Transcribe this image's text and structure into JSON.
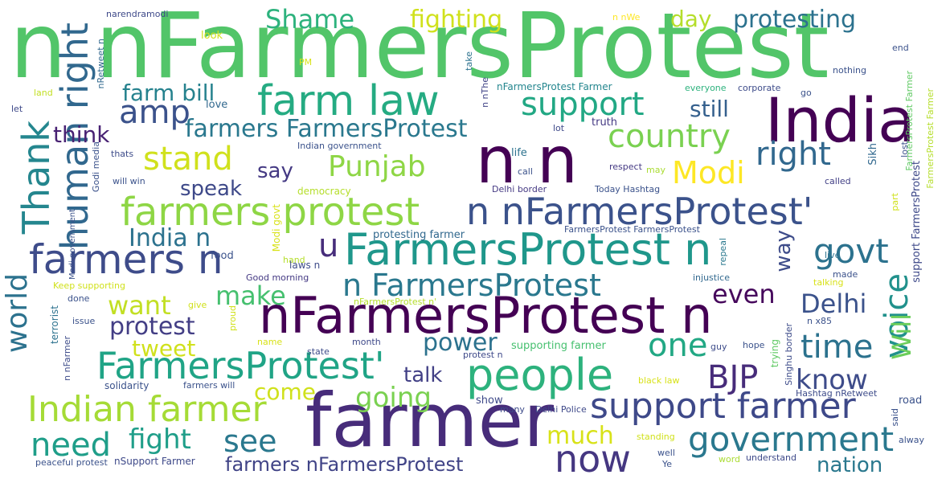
{
  "words": [
    {
      "text": "n nFarmersProtest",
      "color": "#52c569"
    },
    {
      "text": "India",
      "color": "#440154"
    },
    {
      "text": "farmer",
      "color": "#472c7a"
    },
    {
      "text": "n n",
      "color": "#440154"
    },
    {
      "text": "nFarmersProtest n",
      "color": "#440154"
    },
    {
      "text": "FarmersProtest n",
      "color": "#1f978b"
    },
    {
      "text": "farm law",
      "color": "#25ab82"
    },
    {
      "text": "farmers protest",
      "color": "#8ed645"
    },
    {
      "text": "n nFarmersProtest'",
      "color": "#3b528b"
    },
    {
      "text": "people",
      "color": "#2db27d"
    },
    {
      "text": "farmers n",
      "color": "#3e4c8a"
    },
    {
      "text": "human right",
      "color": "#31688e"
    },
    {
      "text": "Thank",
      "color": "#24868e"
    },
    {
      "text": "FarmersProtest'",
      "color": "#20a486"
    },
    {
      "text": "Indian farmer",
      "color": "#a5db36"
    },
    {
      "text": "support farmer",
      "color": "#3e4989"
    },
    {
      "text": "government",
      "color": "#2a788e"
    },
    {
      "text": "now",
      "color": "#453781"
    },
    {
      "text": "need",
      "color": "#1f9e89"
    },
    {
      "text": "country",
      "color": "#7ad151"
    },
    {
      "text": "support",
      "color": "#22a884"
    },
    {
      "text": "stand",
      "color": "#d0e11c"
    },
    {
      "text": "right",
      "color": "#31688e"
    },
    {
      "text": "Punjab",
      "color": "#8ed645"
    },
    {
      "text": "Modi",
      "color": "#fde725"
    },
    {
      "text": "amp",
      "color": "#3b528b"
    },
    {
      "text": "Shame",
      "color": "#2db27d"
    },
    {
      "text": "fighting",
      "color": "#d0e11c"
    },
    {
      "text": "protesting",
      "color": "#2c728e"
    },
    {
      "text": "day",
      "color": "#b5de2b"
    },
    {
      "text": "farm bill",
      "color": "#26828e"
    },
    {
      "text": "still",
      "color": "#35608d"
    },
    {
      "text": "farmers FarmersProtest",
      "color": "#2a788e"
    },
    {
      "text": "think",
      "color": "#482173"
    },
    {
      "text": "say",
      "color": "#443983"
    },
    {
      "text": "speak",
      "color": "#3e4989"
    },
    {
      "text": "India n",
      "color": "#2c728e"
    },
    {
      "text": "u",
      "color": "#472d7b"
    },
    {
      "text": "n FarmersProtest",
      "color": "#2a788e"
    },
    {
      "text": "govt",
      "color": "#2c728e"
    },
    {
      "text": "make",
      "color": "#46c06f"
    },
    {
      "text": "want",
      "color": "#c2df23"
    },
    {
      "text": "protest",
      "color": "#433e85"
    },
    {
      "text": "tweet",
      "color": "#d0e11c"
    },
    {
      "text": "power",
      "color": "#2c728e"
    },
    {
      "text": "one",
      "color": "#22a884"
    },
    {
      "text": "time",
      "color": "#2c728e"
    },
    {
      "text": "even",
      "color": "#46085c"
    },
    {
      "text": "Delhi",
      "color": "#3b528b"
    },
    {
      "text": "voice",
      "color": "#21918c"
    },
    {
      "text": "Will",
      "color": "#6ccd5a"
    },
    {
      "text": "BJP",
      "color": "#472c7a"
    },
    {
      "text": "know",
      "color": "#3e4c8a"
    },
    {
      "text": "going",
      "color": "#7ad151"
    },
    {
      "text": "talk",
      "color": "#424086"
    },
    {
      "text": "come",
      "color": "#d0e11c"
    },
    {
      "text": "world",
      "color": "#2c728e"
    },
    {
      "text": "fight",
      "color": "#1f9e89"
    },
    {
      "text": "see",
      "color": "#2a788e"
    },
    {
      "text": "much",
      "color": "#d8e219"
    },
    {
      "text": "farmers nFarmersProtest",
      "color": "#414487"
    },
    {
      "text": "nation",
      "color": "#2a788e"
    },
    {
      "text": "way",
      "color": "#3e4c8a"
    },
    {
      "text": "narendramodi",
      "color": "#3e4989"
    },
    {
      "text": "n nWe",
      "color": "#fde725"
    },
    {
      "text": "look",
      "color": "#d0e11c"
    },
    {
      "text": "PM",
      "color": "#d8e219"
    },
    {
      "text": "nRetweet n",
      "color": "#31688e"
    },
    {
      "text": "take",
      "color": "#2c728e"
    },
    {
      "text": "n nThe",
      "color": "#414487"
    },
    {
      "text": "nothing",
      "color": "#3b528b"
    },
    {
      "text": "end",
      "color": "#3b528b"
    },
    {
      "text": "FarmersProtest Farmer",
      "color": "#5ec962"
    },
    {
      "text": "land",
      "color": "#c2df23"
    },
    {
      "text": "let",
      "color": "#3e4989"
    },
    {
      "text": "love",
      "color": "#31688e"
    },
    {
      "text": "nFarmersProtest Farmer",
      "color": "#24868e"
    },
    {
      "text": "everyone",
      "color": "#2db27d"
    },
    {
      "text": "corporate",
      "color": "#3e4c8a"
    },
    {
      "text": "go",
      "color": "#3b528b"
    },
    {
      "text": "truth",
      "color": "#443983"
    },
    {
      "text": "lot",
      "color": "#3e4989"
    },
    {
      "text": "Indian government",
      "color": "#3b528b"
    },
    {
      "text": "life",
      "color": "#2c728e"
    },
    {
      "text": "thats",
      "color": "#3e4c8a"
    },
    {
      "text": "Godi media",
      "color": "#3b528b"
    },
    {
      "text": "call",
      "color": "#3b528b"
    },
    {
      "text": "respect",
      "color": "#443983"
    },
    {
      "text": "may",
      "color": "#aadc32"
    },
    {
      "text": "lost",
      "color": "#3b528b"
    },
    {
      "text": "Sikh",
      "color": "#31688e"
    },
    {
      "text": "FarmersProtest Farmer",
      "color": "#b5de2b"
    },
    {
      "text": "support FarmersProtest",
      "color": "#3e4989"
    },
    {
      "text": "will win",
      "color": "#3b528b"
    },
    {
      "text": "democracy",
      "color": "#b5de2b"
    },
    {
      "text": "Delhi border",
      "color": "#443983"
    },
    {
      "text": "Today Hashtag",
      "color": "#3b528b"
    },
    {
      "text": "called",
      "color": "#424086"
    },
    {
      "text": "part",
      "color": "#d0e11c"
    },
    {
      "text": "Modi government",
      "color": "#3b528b"
    },
    {
      "text": "hand",
      "color": "#b5de2b"
    },
    {
      "text": "Modi govt",
      "color": "#d8e219"
    },
    {
      "text": "FarmersProtest FarmersProtest",
      "color": "#3b528b"
    },
    {
      "text": "protesting farmer",
      "color": "#31688e"
    },
    {
      "text": "live",
      "color": "#2c728e"
    },
    {
      "text": "food",
      "color": "#3b528b"
    },
    {
      "text": "laws n",
      "color": "#3e4c8a"
    },
    {
      "text": "repeal",
      "color": "#2a788e"
    },
    {
      "text": "Good morning",
      "color": "#443983"
    },
    {
      "text": "injustice",
      "color": "#31688e"
    },
    {
      "text": "made",
      "color": "#3b528b"
    },
    {
      "text": "Keep supporting",
      "color": "#d0e11c"
    },
    {
      "text": "talking",
      "color": "#d8e219"
    },
    {
      "text": "done",
      "color": "#3b528b"
    },
    {
      "text": "give",
      "color": "#d0e11c"
    },
    {
      "text": "nFarmersProtest n'",
      "color": "#b5de2b"
    },
    {
      "text": "n x85",
      "color": "#3b528b"
    },
    {
      "text": "terrorist",
      "color": "#2c728e"
    },
    {
      "text": "issue",
      "color": "#3b528b"
    },
    {
      "text": "proud",
      "color": "#d0e11c"
    },
    {
      "text": "n nFarmer",
      "color": "#3e4c8a"
    },
    {
      "text": "name",
      "color": "#d8e219"
    },
    {
      "text": "state",
      "color": "#3e4c8a"
    },
    {
      "text": "month",
      "color": "#3e4989"
    },
    {
      "text": "protest n",
      "color": "#3e4989"
    },
    {
      "text": "supporting farmer",
      "color": "#46c06f"
    },
    {
      "text": "guy",
      "color": "#3e4c8a"
    },
    {
      "text": "hope",
      "color": "#3b528b"
    },
    {
      "text": "trying",
      "color": "#5ec962"
    },
    {
      "text": "Singhu border",
      "color": "#3e4c8a"
    },
    {
      "text": "solidarity",
      "color": "#3b528b"
    },
    {
      "text": "farmers will",
      "color": "#3b528b"
    },
    {
      "text": "black law",
      "color": "#d8e219"
    },
    {
      "text": "Hashtag nRetweet",
      "color": "#3e4c8a"
    },
    {
      "text": "road",
      "color": "#3b528b"
    },
    {
      "text": "show",
      "color": "#3e4989"
    },
    {
      "text": "many",
      "color": "#3e4c8a"
    },
    {
      "text": "Delhi Police",
      "color": "#3e4989"
    },
    {
      "text": "said",
      "color": "#3b528b"
    },
    {
      "text": "standing",
      "color": "#d0e11c"
    },
    {
      "text": "alway",
      "color": "#3b528b"
    },
    {
      "text": "peaceful protest",
      "color": "#3b528b"
    },
    {
      "text": "nSupport Farmer",
      "color": "#3e4989"
    },
    {
      "text": "well",
      "color": "#3b528b"
    },
    {
      "text": "word",
      "color": "#aadc32"
    },
    {
      "text": "understand",
      "color": "#3e4989"
    },
    {
      "text": "Ye",
      "color": "#3b528b"
    }
  ]
}
